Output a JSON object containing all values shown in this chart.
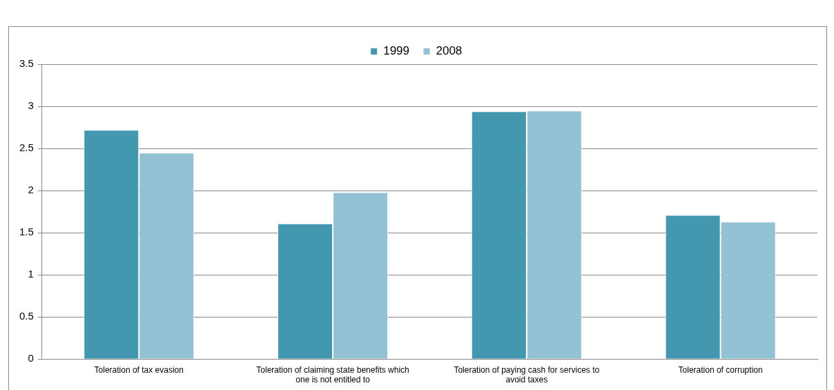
{
  "chart_data": {
    "type": "bar",
    "categories": [
      "Toleration of tax evasion",
      "Toleration of claiming state benefits which one is not entitled to",
      "Toleration of paying cash for services to avoid taxes",
      "Toleration of corruption"
    ],
    "series": [
      {
        "name": "1999",
        "color": "#4397ae",
        "values": [
          2.72,
          1.61,
          2.94,
          1.71
        ]
      },
      {
        "name": "2008",
        "color": "#93c2d4",
        "values": [
          2.45,
          1.98,
          2.95,
          1.63
        ]
      }
    ],
    "ylim": [
      0,
      3.5
    ],
    "yticks": [
      0,
      0.5,
      1,
      1.5,
      2,
      2.5,
      3,
      3.5
    ],
    "grid": "y",
    "legend": "top"
  }
}
